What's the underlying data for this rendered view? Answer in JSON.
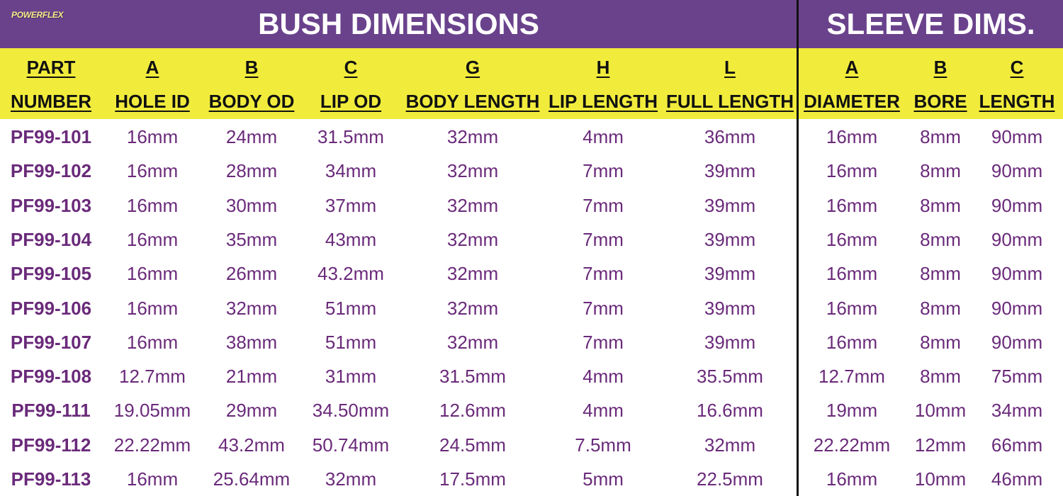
{
  "logo": "POWERFLEX",
  "titles": {
    "bush": "BUSH DIMENSIONS",
    "sleeve": "SLEEVE DIMS."
  },
  "colors": {
    "header_purple": "#6a428c",
    "header_yellow": "#f1ec3c",
    "text_purple": "#6a2a7a"
  },
  "columns": [
    {
      "top": "PART",
      "bottom": "NUMBER"
    },
    {
      "top": "A",
      "bottom": "HOLE ID"
    },
    {
      "top": "B",
      "bottom": "BODY OD"
    },
    {
      "top": "C",
      "bottom": "LIP OD"
    },
    {
      "top": "G",
      "bottom": "BODY LENGTH"
    },
    {
      "top": "H",
      "bottom": "LIP LENGTH"
    },
    {
      "top": "L",
      "bottom": "FULL LENGTH"
    },
    {
      "top": "A",
      "bottom": "DIAMETER"
    },
    {
      "top": "B",
      "bottom": "BORE"
    },
    {
      "top": "C",
      "bottom": "LENGTH"
    }
  ],
  "rows": [
    [
      "PF99-101",
      "16mm",
      "24mm",
      "31.5mm",
      "32mm",
      "4mm",
      "36mm",
      "16mm",
      "8mm",
      "90mm"
    ],
    [
      "PF99-102",
      "16mm",
      "28mm",
      "34mm",
      "32mm",
      "7mm",
      "39mm",
      "16mm",
      "8mm",
      "90mm"
    ],
    [
      "PF99-103",
      "16mm",
      "30mm",
      "37mm",
      "32mm",
      "7mm",
      "39mm",
      "16mm",
      "8mm",
      "90mm"
    ],
    [
      "PF99-104",
      "16mm",
      "35mm",
      "43mm",
      "32mm",
      "7mm",
      "39mm",
      "16mm",
      "8mm",
      "90mm"
    ],
    [
      "PF99-105",
      "16mm",
      "26mm",
      "43.2mm",
      "32mm",
      "7mm",
      "39mm",
      "16mm",
      "8mm",
      "90mm"
    ],
    [
      "PF99-106",
      "16mm",
      "32mm",
      "51mm",
      "32mm",
      "7mm",
      "39mm",
      "16mm",
      "8mm",
      "90mm"
    ],
    [
      "PF99-107",
      "16mm",
      "38mm",
      "51mm",
      "32mm",
      "7mm",
      "39mm",
      "16mm",
      "8mm",
      "90mm"
    ],
    [
      "PF99-108",
      "12.7mm",
      "21mm",
      "31mm",
      "31.5mm",
      "4mm",
      "35.5mm",
      "12.7mm",
      "8mm",
      "75mm"
    ],
    [
      "PF99-111",
      "19.05mm",
      "29mm",
      "34.50mm",
      "12.6mm",
      "4mm",
      "16.6mm",
      "19mm",
      "10mm",
      "34mm"
    ],
    [
      "PF99-112",
      "22.22mm",
      "43.2mm",
      "50.74mm",
      "24.5mm",
      "7.5mm",
      "32mm",
      "22.22mm",
      "12mm",
      "66mm"
    ],
    [
      "PF99-113",
      "16mm",
      "25.64mm",
      "32mm",
      "17.5mm",
      "5mm",
      "22.5mm",
      "16mm",
      "10mm",
      "46mm"
    ]
  ]
}
